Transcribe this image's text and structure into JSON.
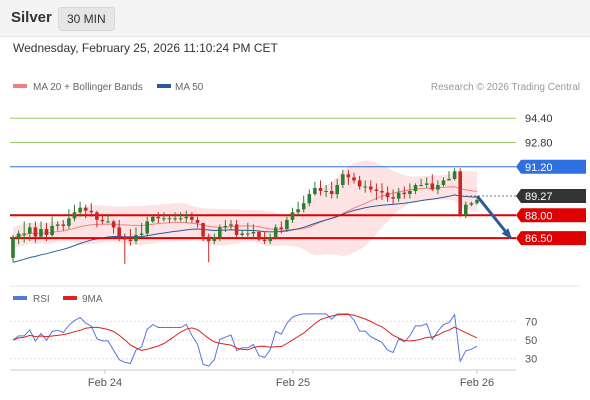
{
  "header": {
    "instrument": "Silver",
    "timeframe": "30 MIN",
    "datetime": "Wednesday, February 25, 2026 11:10:24 PM CET"
  },
  "legend": {
    "ma20_label": "MA 20 + Bollinger Bands",
    "ma50_label": "MA 50",
    "credit": "Research © 2026 Trading Central",
    "ma20_color": "#f08080",
    "ma50_color": "#2c5a99"
  },
  "rsi_legend": {
    "rsi_label": "RSI",
    "ma_label": "9MA",
    "rsi_color": "#5577dd",
    "ma_color": "#dd2222"
  },
  "x_axis": {
    "labels": [
      "Feb 24",
      "Feb 25",
      "Feb 26"
    ]
  },
  "levels": [
    {
      "value": "94.40",
      "kind": "target",
      "color": "#9ccc65"
    },
    {
      "value": "92.80",
      "kind": "target",
      "color": "#9ccc65"
    },
    {
      "value": "91.20",
      "kind": "pivot",
      "color": "#2f6fe0"
    },
    {
      "value": "89.27",
      "kind": "last",
      "color": "#333333"
    },
    {
      "value": "88.00",
      "kind": "support",
      "color": "#dd0000"
    },
    {
      "value": "86.50",
      "kind": "support",
      "color": "#dd0000"
    }
  ],
  "rsi_axis": {
    "labels": [
      "70",
      "50",
      "30"
    ]
  },
  "chart_data": {
    "type": "candlestick",
    "instrument": "Silver",
    "timeframe": "30 MIN",
    "price_range": [
      84.0,
      95.6
    ],
    "last_price": 89.27,
    "forecast_arrow": {
      "from": 89.2,
      "to": 86.5,
      "color": "#2c5a99"
    },
    "rsi": {
      "range": [
        20,
        80
      ],
      "levels": [
        70,
        50,
        30
      ]
    },
    "x_labels": [
      "Feb 24",
      "Feb 25",
      "Feb 26"
    ],
    "candles": {
      "open": [
        85.2,
        86.5,
        86.8,
        86.8,
        87.2,
        86.6,
        87.1,
        86.7,
        87.3,
        87.4,
        87.3,
        87.8,
        88.2,
        88.5,
        88.3,
        88.2,
        87.7,
        87.6,
        87.6,
        87.2,
        86.6,
        86.4,
        86.3,
        86.7,
        86.8,
        87.6,
        87.9,
        87.8,
        87.8,
        87.8,
        87.8,
        87.8,
        87.9,
        87.7,
        87.5,
        86.6,
        86.3,
        86.5,
        87.2,
        87.3,
        87.4,
        86.7,
        86.8,
        86.8,
        86.9,
        86.4,
        86.3,
        86.5,
        87.2,
        87.1,
        87.7,
        88.2,
        88.4,
        88.8,
        89.4,
        89.8,
        89.6,
        89.6,
        89.4,
        90.0,
        90.7,
        90.5,
        90.3,
        89.9,
        89.9,
        89.7,
        89.6,
        89.5,
        89.2,
        89.1,
        89.5,
        89.4,
        89.6,
        90.0,
        90.0,
        90.1,
        89.7,
        90.0,
        90.3,
        90.4,
        90.9,
        88.0,
        88.7,
        88.8
      ],
      "high": [
        86.7,
        87.0,
        87.6,
        87.5,
        87.6,
        87.6,
        87.5,
        87.9,
        87.6,
        87.7,
        88.4,
        88.7,
        88.9,
        88.7,
        88.8,
        88.3,
        88.0,
        88.1,
        87.7,
        87.7,
        86.8,
        87.1,
        87.2,
        87.5,
        87.9,
        88.0,
        88.2,
        88.2,
        88.0,
        88.2,
        88.2,
        88.3,
        88.2,
        87.9,
        87.5,
        86.8,
        86.8,
        87.4,
        87.7,
        87.7,
        87.7,
        87.0,
        87.5,
        87.4,
        87.0,
        86.9,
        86.8,
        87.4,
        87.6,
        87.9,
        88.5,
        88.9,
        89.3,
        89.7,
        90.2,
        90.3,
        90.0,
        90.2,
        90.4,
        91.0,
        91.0,
        90.8,
        90.6,
        90.3,
        90.3,
        90.1,
        90.1,
        89.9,
        89.7,
        89.8,
        89.9,
        90.1,
        90.1,
        90.4,
        90.5,
        90.7,
        90.3,
        90.5,
        90.9,
        91.1,
        91.1,
        88.9,
        88.9,
        89.1
      ],
      "low": [
        84.9,
        86.1,
        86.2,
        86.3,
        86.2,
        86.5,
        86.3,
        86.6,
        87.0,
        87.0,
        87.1,
        87.6,
        87.9,
        87.8,
        87.9,
        87.2,
        87.4,
        87.5,
        86.8,
        86.3,
        84.8,
        86.0,
        86.1,
        86.6,
        86.6,
        87.5,
        87.5,
        87.6,
        87.5,
        87.6,
        87.6,
        87.5,
        87.5,
        87.2,
        86.3,
        84.9,
        86.1,
        86.3,
        86.9,
        87.0,
        86.5,
        86.6,
        86.5,
        86.5,
        86.3,
        86.1,
        86.1,
        86.4,
        86.8,
        86.9,
        87.5,
        88.0,
        88.2,
        88.6,
        89.3,
        89.3,
        89.2,
        89.1,
        89.1,
        89.8,
        90.0,
        90.1,
        89.7,
        89.5,
        89.5,
        89.0,
        89.0,
        88.9,
        88.7,
        88.9,
        89.1,
        89.1,
        89.4,
        89.9,
        89.8,
        89.6,
        89.4,
        89.9,
        90.3,
        90.3,
        87.9,
        87.8,
        88.6,
        88.7
      ],
      "close": [
        86.5,
        86.8,
        86.8,
        87.2,
        86.6,
        87.1,
        86.7,
        87.3,
        87.4,
        87.3,
        87.8,
        88.2,
        88.5,
        88.3,
        88.2,
        87.7,
        87.6,
        87.6,
        87.2,
        86.6,
        86.4,
        86.3,
        86.7,
        86.8,
        87.6,
        87.9,
        87.8,
        87.8,
        87.8,
        87.8,
        87.8,
        87.9,
        87.7,
        87.5,
        86.6,
        86.3,
        86.5,
        87.2,
        87.3,
        87.4,
        86.7,
        86.8,
        86.8,
        86.9,
        86.4,
        86.3,
        86.5,
        87.2,
        87.1,
        87.7,
        88.2,
        88.4,
        88.8,
        89.4,
        89.8,
        89.6,
        89.6,
        89.4,
        90.0,
        90.7,
        90.5,
        90.3,
        89.9,
        89.9,
        89.7,
        89.6,
        89.5,
        89.2,
        89.1,
        89.5,
        89.4,
        89.6,
        90.0,
        90.0,
        90.1,
        89.7,
        90.0,
        90.3,
        90.4,
        90.9,
        88.0,
        88.7,
        88.8,
        89.0
      ]
    }
  }
}
